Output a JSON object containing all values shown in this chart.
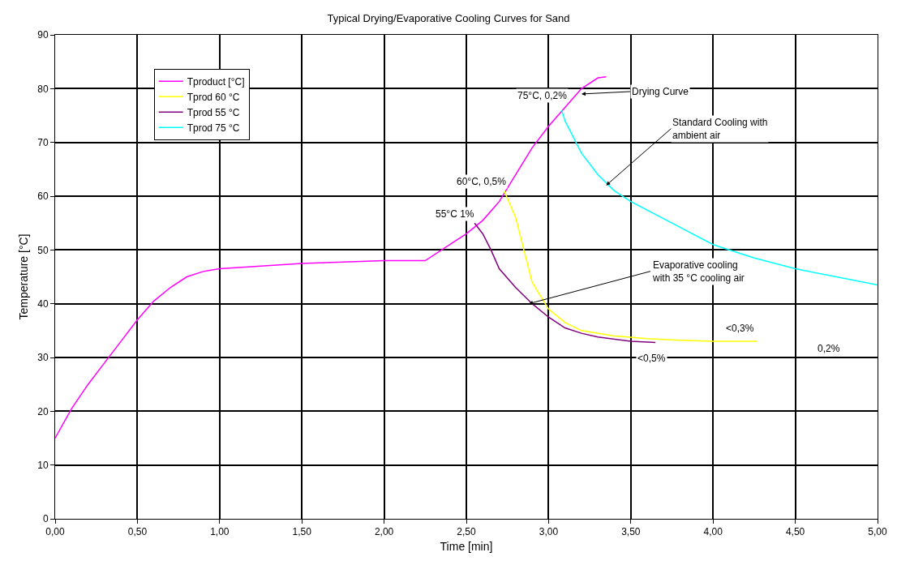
{
  "chart_data": {
    "type": "line",
    "title": "Typical Drying/Evaporative Cooling Curves for Sand",
    "xlabel": "Time [min]",
    "ylabel": "Temperature [°C]",
    "xlim": [
      0,
      5
    ],
    "xticks": [
      {
        "value": 0,
        "label": "0,00"
      },
      {
        "value": 0.5,
        "label": "0,50"
      },
      {
        "value": 1,
        "label": "1,00"
      },
      {
        "value": 1.5,
        "label": "1,50"
      },
      {
        "value": 2,
        "label": "2,00"
      },
      {
        "value": 2.5,
        "label": "2,50"
      },
      {
        "value": 3,
        "label": "3,00"
      },
      {
        "value": 3.5,
        "label": "3,50"
      },
      {
        "value": 4,
        "label": "4,00"
      },
      {
        "value": 4.5,
        "label": "4,50"
      },
      {
        "value": 5,
        "label": "5,00"
      }
    ],
    "ylim": [
      0,
      90
    ],
    "yticks": [
      0,
      10,
      20,
      30,
      40,
      50,
      60,
      70,
      80,
      90
    ],
    "grid": true,
    "legend": "top left",
    "marker": "none",
    "line_style": "solid",
    "series": [
      {
        "name": "Tproduct [°C]",
        "color": "#ff00ff",
        "x": [
          0,
          0.1,
          0.2,
          0.3,
          0.4,
          0.5,
          0.6,
          0.7,
          0.8,
          0.9,
          1.0,
          1.5,
          2.0,
          2.25,
          2.4,
          2.5,
          2.6,
          2.7,
          2.8,
          2.9,
          3.0,
          3.1,
          3.2,
          3.3,
          3.35
        ],
        "values": [
          15,
          20.5,
          25,
          29,
          33,
          37,
          40.5,
          43,
          45,
          46,
          46.5,
          47.5,
          48,
          48,
          51,
          53,
          55.5,
          59,
          64,
          69,
          73,
          76.5,
          80,
          82,
          82.2
        ]
      },
      {
        "name": "Tprod 60 °C",
        "color": "#ffff00",
        "x": [
          2.73,
          2.8,
          2.85,
          2.9,
          3.0,
          3.1,
          3.2,
          3.4,
          3.6,
          3.8,
          4.0,
          4.27
        ],
        "values": [
          61,
          56,
          50,
          44,
          39,
          36.5,
          35,
          34,
          33.5,
          33.2,
          33,
          33
        ]
      },
      {
        "name": "Tprod 55 °C",
        "color": "#800080",
        "x": [
          2.55,
          2.6,
          2.65,
          2.7,
          2.8,
          2.9,
          3.0,
          3.1,
          3.2,
          3.3,
          3.5,
          3.65
        ],
        "values": [
          55,
          53,
          50,
          46.5,
          43,
          40,
          37.5,
          35.5,
          34.5,
          33.8,
          33,
          32.8
        ]
      },
      {
        "name": "Tprod 75 °C",
        "color": "#00ffff",
        "x": [
          3.08,
          3.1,
          3.2,
          3.3,
          3.4,
          3.5,
          3.75,
          4.0,
          4.25,
          4.5,
          4.75,
          5.0
        ],
        "values": [
          76,
          74,
          68,
          64,
          61,
          59,
          55,
          51,
          48.5,
          46.5,
          45,
          43.5
        ]
      }
    ],
    "annotations": [
      {
        "text": "Drying Curve",
        "x": 3.2,
        "y": 79
      },
      {
        "text": "Standard Cooling with\nambient air",
        "x": 3.35,
        "y": 62
      },
      {
        "text": "75°C, 0,2%",
        "x": 3.1,
        "y": 77
      },
      {
        "text": "60°C, 0,5%",
        "x": 2.73,
        "y": 61
      },
      {
        "text": "55°C 1%",
        "x": 2.55,
        "y": 55
      },
      {
        "text": "Evaporative cooling\nwith 35 °C cooling air",
        "x": 2.88,
        "y": 40
      },
      "<0,3%",
      "<0,5%",
      "0,2%"
    ]
  }
}
